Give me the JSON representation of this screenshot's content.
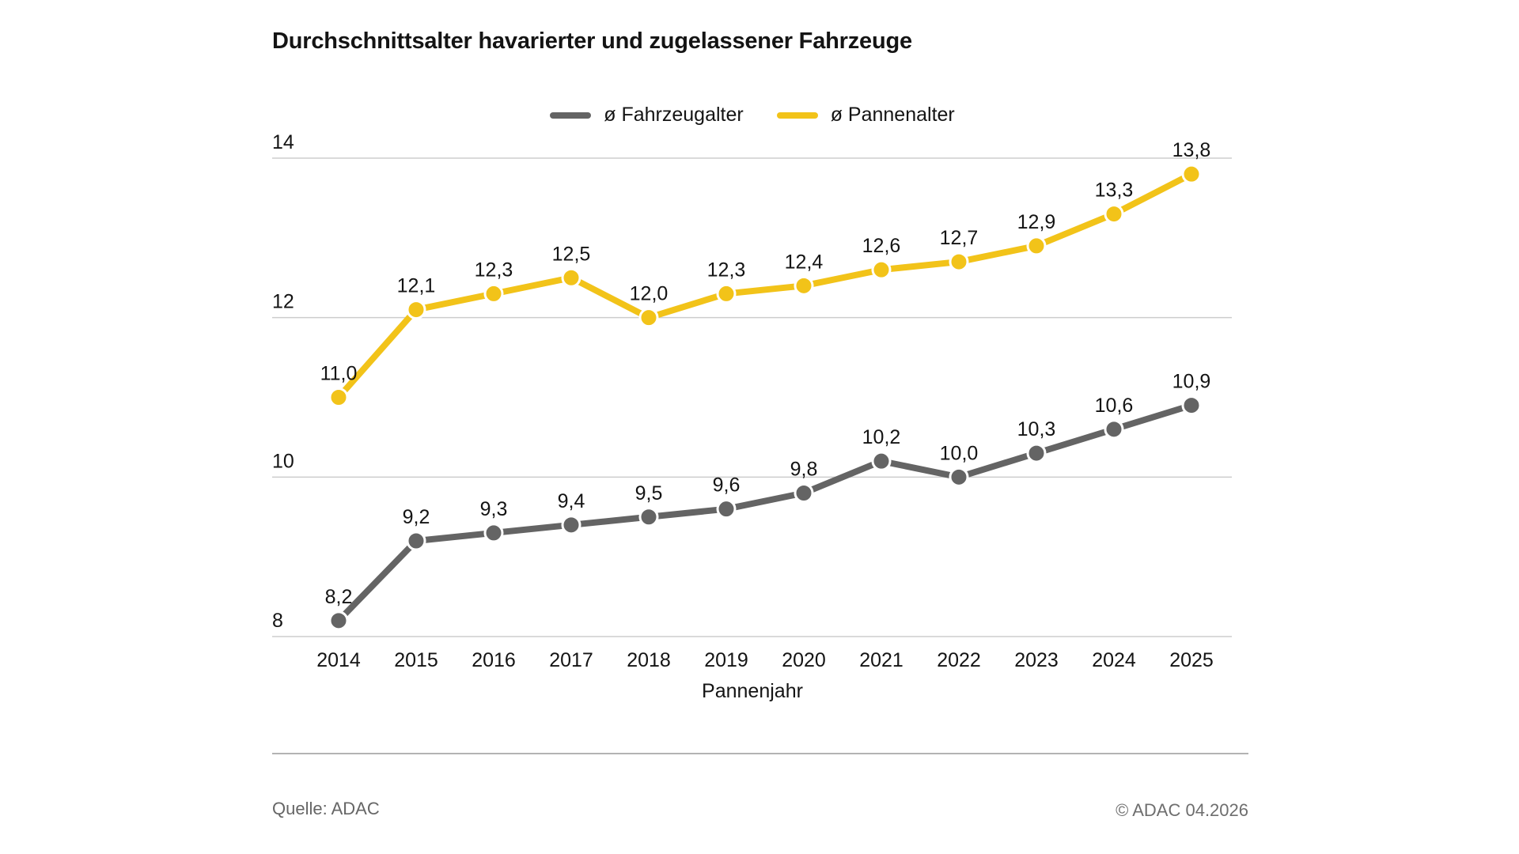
{
  "title": "Durchschnittsalter havarierter und zugelassener Fahrzeuge",
  "chart_data": {
    "type": "line",
    "x": [
      2014,
      2015,
      2016,
      2017,
      2018,
      2019,
      2020,
      2021,
      2022,
      2023,
      2024,
      2025
    ],
    "xlabel": "Pannenjahr",
    "ylim": [
      8,
      14
    ],
    "yticks": [
      8,
      10,
      12,
      14
    ],
    "grid": "horizontal",
    "legend_position": "top-center",
    "decimal_separator": ",",
    "series": [
      {
        "name": "ø Fahrzeugalter",
        "color": "#646464",
        "values": [
          8.2,
          9.2,
          9.3,
          9.4,
          9.5,
          9.6,
          9.8,
          10.2,
          10.0,
          10.3,
          10.6,
          10.9
        ]
      },
      {
        "name": "ø Pannenalter",
        "color": "#F2C319",
        "values": [
          11.0,
          12.1,
          12.3,
          12.5,
          12.0,
          12.3,
          12.4,
          12.6,
          12.7,
          12.9,
          13.3,
          13.8
        ]
      }
    ]
  },
  "colors": {
    "grid": "#cdcdcd",
    "axis_text": "#141414",
    "footer_line": "#b3b3b3",
    "footer_text": "#666666"
  },
  "footer": {
    "source": "Quelle: ADAC",
    "copyright": "© ADAC 04.2026"
  }
}
